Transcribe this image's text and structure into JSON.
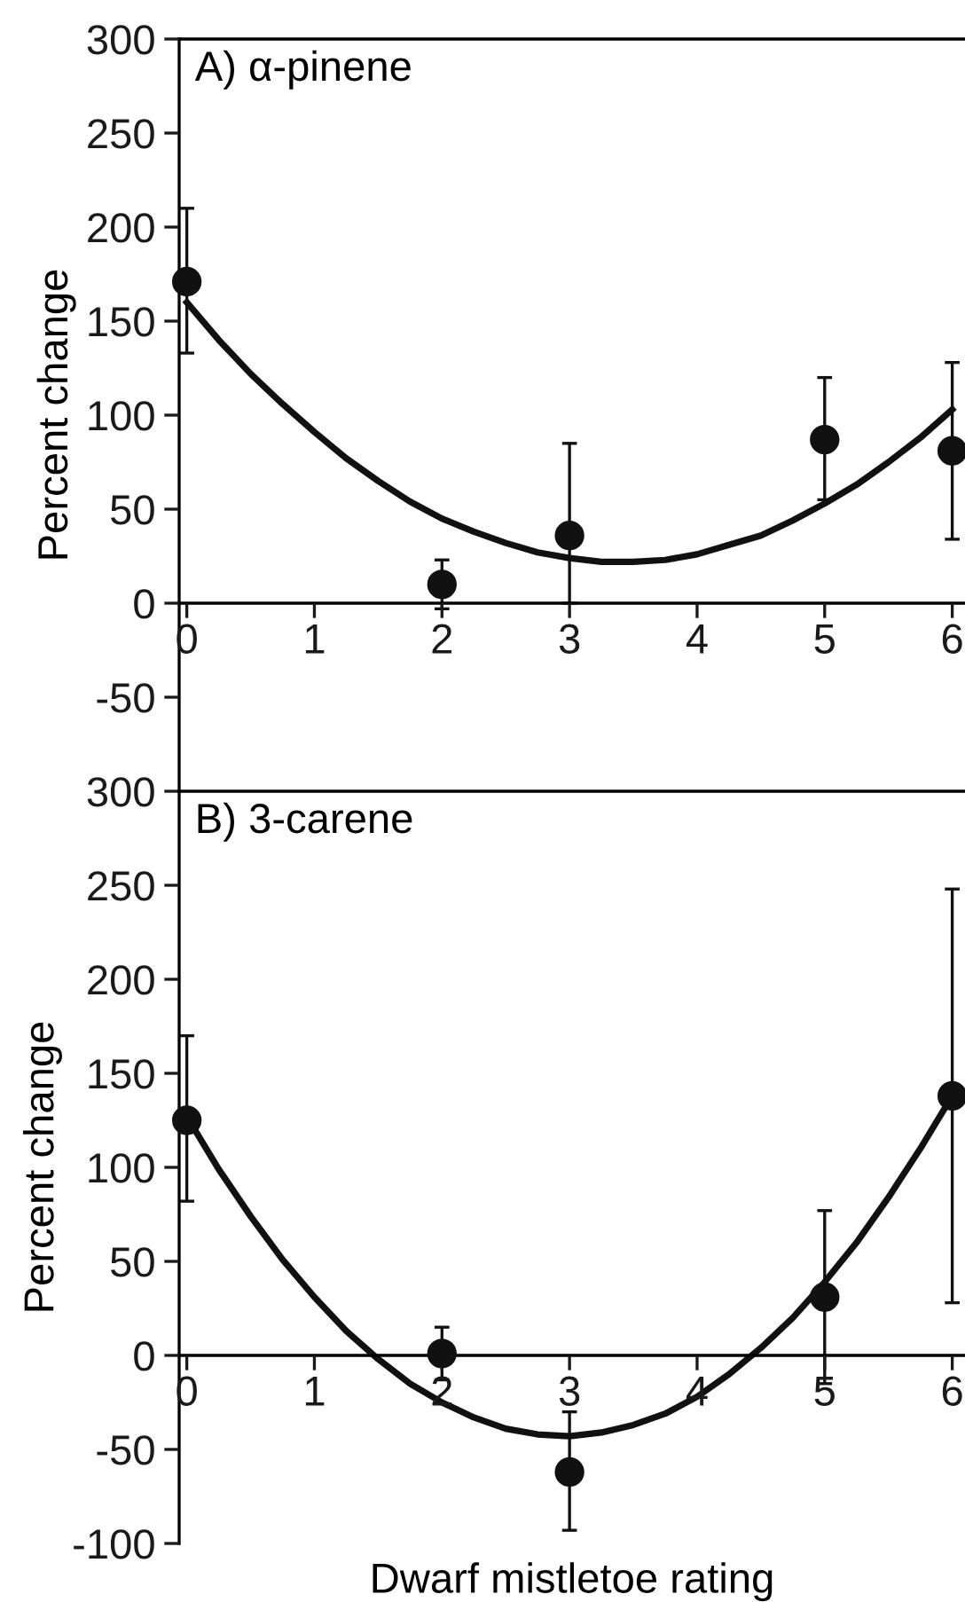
{
  "chart_data": [
    {
      "type": "scatter",
      "title": "A) α-pinene",
      "ylabel": "Percent change",
      "xlim": [
        -0.06,
        6.1
      ],
      "xticks": [
        0,
        1,
        2,
        3,
        4,
        5,
        6
      ],
      "ylim": [
        -100,
        300
      ],
      "yticks": [
        -50,
        0,
        50,
        100,
        150,
        200,
        250,
        300
      ],
      "grid": false,
      "marker": "circle",
      "series": [
        {
          "color": "#111111",
          "x": [
            0,
            2,
            3,
            5,
            6
          ],
          "values": [
            171,
            10,
            36,
            87,
            81
          ],
          "errors": [
            [
              133,
              210
            ],
            [
              -3,
              23
            ],
            [
              0,
              85
            ],
            [
              55,
              120
            ],
            [
              34,
              128
            ]
          ]
        },
        {
          "type": "line",
          "color": "#111111",
          "line_style": "solid",
          "marker": "none",
          "x": [
            0,
            0.25,
            0.5,
            0.75,
            1,
            1.25,
            1.5,
            1.75,
            2,
            2.25,
            2.5,
            2.75,
            3,
            3.25,
            3.5,
            3.75,
            4,
            4.25,
            4.5,
            4.75,
            5,
            5.25,
            5.5,
            5.75,
            6
          ],
          "values": [
            160,
            140,
            122,
            106,
            91,
            77,
            65,
            54,
            45,
            38,
            32,
            27,
            24,
            22,
            22,
            23,
            26,
            31,
            36,
            44,
            53,
            63,
            75,
            88,
            103
          ]
        }
      ]
    },
    {
      "type": "scatter",
      "title": "B) 3-carene",
      "xlabel": "Dwarf mistletoe rating",
      "ylabel": "Percent change",
      "xlim": [
        -0.06,
        6.1
      ],
      "xticks": [
        0,
        1,
        2,
        3,
        4,
        5,
        6
      ],
      "ylim": [
        -100,
        300
      ],
      "yticks": [
        -100,
        -50,
        0,
        50,
        100,
        150,
        200,
        250,
        300
      ],
      "grid": false,
      "marker": "circle",
      "series": [
        {
          "color": "#111111",
          "x": [
            0,
            2,
            3,
            5,
            6
          ],
          "values": [
            125,
            1,
            -62,
            31,
            138
          ],
          "errors": [
            [
              82,
              170
            ],
            [
              -13,
              15
            ],
            [
              -93,
              -30
            ],
            [
              -15,
              77
            ],
            [
              28,
              248
            ]
          ]
        },
        {
          "type": "line",
          "color": "#111111",
          "line_style": "solid",
          "marker": "none",
          "x": [
            0,
            0.25,
            0.5,
            0.75,
            1,
            1.25,
            1.5,
            1.75,
            2,
            2.25,
            2.5,
            2.75,
            3,
            3.25,
            3.5,
            3.75,
            4,
            4.25,
            4.5,
            4.75,
            5,
            5.25,
            5.5,
            5.75,
            6
          ],
          "values": [
            127,
            99,
            74,
            51,
            31,
            13,
            -2,
            -15,
            -25,
            -33,
            -39,
            -42,
            -43,
            -41,
            -37,
            -31,
            -22,
            -10,
            4,
            20,
            39,
            60,
            84,
            110,
            138
          ]
        }
      ]
    }
  ]
}
